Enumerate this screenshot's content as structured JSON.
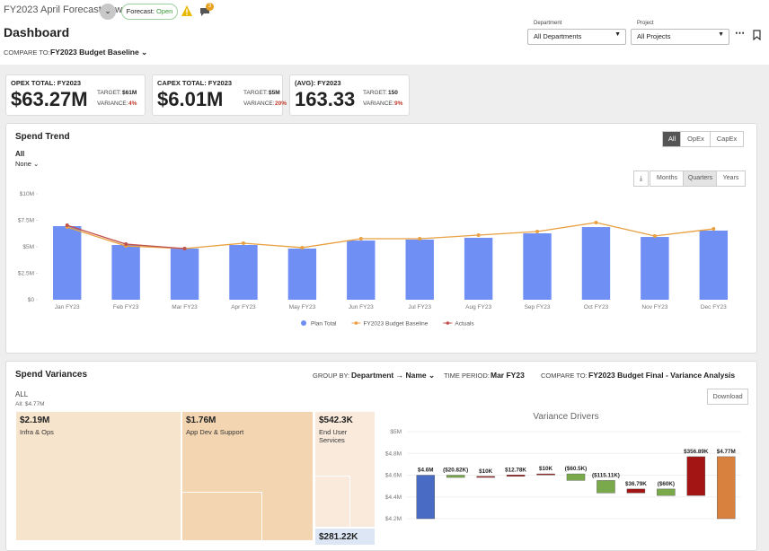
{
  "header": {
    "plan_name": "FY2023 April Forecast new",
    "status_label": "Forecast:",
    "status_value": "Open",
    "notification_count": "3",
    "title": "Dashboard",
    "compare_label": "COMPARE TO:",
    "compare_value": "FY2023 Budget Baseline"
  },
  "filters": [
    {
      "label": "Department",
      "value": "All Departments"
    },
    {
      "label": "Project",
      "value": "All Projects"
    }
  ],
  "kpis": [
    {
      "title": "OPEX TOTAL: FY2023",
      "value": "$63.27M",
      "target_label": "TARGET:",
      "target": "$61M",
      "variance_label": "VARIANCE:",
      "variance": "4%"
    },
    {
      "title": "CAPEX TOTAL: FY2023",
      "value": "$6.01M",
      "target_label": "TARGET:",
      "target": "$5M",
      "variance_label": "VARIANCE:",
      "variance": "20%"
    },
    {
      "title": "(AVG): FY2023",
      "value": "163.33",
      "target_label": "TARGET:",
      "target": "150",
      "variance_label": "VARIANCE:",
      "variance": "9%"
    }
  ],
  "spend_trend": {
    "title": "Spend Trend",
    "filter_title": "All",
    "filter_value": "None",
    "type_buttons": [
      "All",
      "OpEx",
      "CapEx"
    ],
    "period_buttons": [
      "Months",
      "Quarters",
      "Years"
    ],
    "chart": {
      "type": "bar_line",
      "categories": [
        "Jan FY23",
        "Feb FY23",
        "Mar FY23",
        "Apr FY23",
        "May FY23",
        "Jun FY23",
        "Jul FY23",
        "Aug FY23",
        "Sep FY23",
        "Oct FY23",
        "Nov FY23",
        "Dec FY23"
      ],
      "series": [
        {
          "name": "Plan Total",
          "type": "bar",
          "color": "#6f8ff5",
          "values": [
            6.95,
            5.17,
            4.83,
            5.17,
            4.83,
            5.59,
            5.68,
            5.85,
            6.27,
            6.86,
            5.93,
            6.53
          ]
        },
        {
          "name": "FY2023 Budget Baseline",
          "type": "line",
          "color": "#e8a040",
          "values": [
            6.86,
            5.08,
            4.83,
            5.34,
            4.92,
            5.76,
            5.76,
            6.1,
            6.44,
            7.29,
            6.02,
            6.69
          ]
        },
        {
          "name": "Actuals",
          "type": "line",
          "color": "#c0504d",
          "values": [
            7.03,
            5.25,
            4.83,
            null,
            null,
            null,
            null,
            null,
            null,
            null,
            null,
            null
          ]
        }
      ],
      "ylim": [
        0,
        10
      ],
      "yticks": [
        {
          "value": 0,
          "label": "$0"
        },
        {
          "value": 2.5,
          "label": "$2.5M"
        },
        {
          "value": 5,
          "label": "$5M"
        },
        {
          "value": 7.5,
          "label": "$7.5M"
        },
        {
          "value": 10,
          "label": "$10M"
        }
      ],
      "legend": "bottom"
    }
  },
  "spend_variances": {
    "title": "Spend Variances",
    "group_by_label": "GROUP BY:",
    "group_by": "Department → Name",
    "period_label": "TIME PERIOD:",
    "period": "Mar FY23",
    "compare_label": "COMPARE TO:",
    "compare": "FY2023 Budget Final - Variance Analysis",
    "download": "Download",
    "scope": "ALL",
    "scope_total": "All: $4.77M",
    "treemap": [
      {
        "value": "$2.19M",
        "label": "Infra & Ops"
      },
      {
        "value": "$1.76M",
        "label": "App Dev & Support"
      },
      {
        "value": "$542.3K",
        "label": "End User Services"
      },
      {
        "value": "$281.22K"
      }
    ],
    "waterfall": {
      "type": "waterfall",
      "title": "Variance Drivers",
      "categories": [
        null,
        null,
        null,
        null,
        null,
        null,
        null,
        null,
        null,
        null,
        null
      ],
      "measure": [
        "total",
        "relative",
        "relative",
        "relative",
        "relative",
        "relative",
        "relative",
        "relative",
        "relative",
        "relative",
        "total"
      ],
      "values": [
        4.6,
        -0.02082,
        0.01,
        0.01278,
        0.01,
        -0.0605,
        -0.11511,
        0.03679,
        -0.06,
        0.35689,
        4.77
      ],
      "value_labels": [
        "$4.6M",
        "($20.82K)",
        "$10K",
        "$12.78K",
        "$10K",
        "($60.5K)",
        "($115.11K)",
        "$36.79K",
        "($60K)",
        "$356.89K",
        "$4.77M"
      ],
      "colors": [
        "#4a6bc4",
        "#79a94a",
        "#a31515",
        "#a31515",
        "#a31515",
        "#79a94a",
        "#79a94a",
        "#a31515",
        "#79a94a",
        "#a31515",
        "#d8813f"
      ],
      "ylim": [
        4.2,
        5
      ],
      "yticks": [
        {
          "value": 4.2,
          "label": "$4.2M"
        },
        {
          "value": 4.4,
          "label": "$4.4M"
        },
        {
          "value": 4.6,
          "label": "$4.6M"
        },
        {
          "value": 4.8,
          "label": "$4.8M"
        },
        {
          "value": 5,
          "label": "$5M"
        }
      ]
    }
  }
}
